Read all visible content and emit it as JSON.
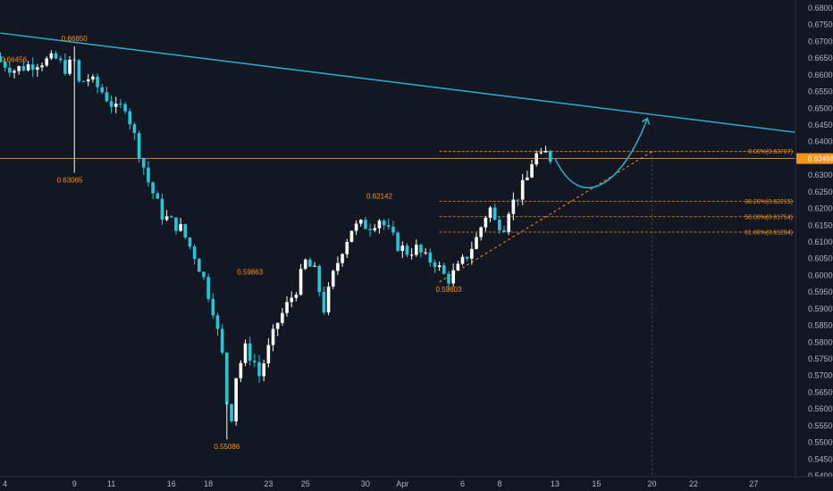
{
  "chart_data": {
    "type": "candlestick",
    "grid": false,
    "price_axis": {
      "position": "right",
      "min": 0.54,
      "max": 0.68,
      "tick_step": 0.005,
      "labels": [
        "0.68000",
        "0.67500",
        "0.67000",
        "0.66500",
        "0.66000",
        "0.65500",
        "0.65000",
        "0.64500",
        "0.64000",
        "0.63500",
        "0.63000",
        "0.62500",
        "0.62000",
        "0.61500",
        "0.61000",
        "0.60500",
        "0.60000",
        "0.59500",
        "0.59000",
        "0.58500",
        "0.58000",
        "0.57500",
        "0.57000",
        "0.56500",
        "0.56000",
        "0.55500",
        "0.55000",
        "0.54500",
        "0.54000"
      ],
      "current_price": 0.63496,
      "current_price_label": "0.63496"
    },
    "time_axis": {
      "labels": [
        {
          "label": "4",
          "index": 1
        },
        {
          "label": "9",
          "index": 16
        },
        {
          "label": "11",
          "index": 24
        },
        {
          "label": "16",
          "index": 37
        },
        {
          "label": "18",
          "index": 45
        },
        {
          "label": "23",
          "index": 58
        },
        {
          "label": "25",
          "index": 66
        },
        {
          "label": "30",
          "index": 79
        },
        {
          "label": "Apr",
          "index": 87
        },
        {
          "label": "6",
          "index": 100
        },
        {
          "label": "8",
          "index": 108
        },
        {
          "label": "13",
          "index": 120
        },
        {
          "label": "15",
          "index": 129
        },
        {
          "label": "20",
          "index": 141
        },
        {
          "label": "22",
          "index": 150
        },
        {
          "label": "27",
          "index": 163
        }
      ],
      "bar_count": 172
    },
    "candles_key_points": [
      {
        "i": 0,
        "v": 0.664
      },
      {
        "i": 3,
        "v": 0.6615
      },
      {
        "i": 8,
        "v": 0.6638
      },
      {
        "i": 12,
        "v": 0.6647
      },
      {
        "i": 14,
        "v": 0.662
      },
      {
        "i": 16,
        "v": 0.664
      },
      {
        "i": 17,
        "v": 0.6575
      },
      {
        "i": 19,
        "v": 0.659
      },
      {
        "i": 22,
        "v": 0.655
      },
      {
        "i": 25,
        "v": 0.6495
      },
      {
        "i": 27,
        "v": 0.651
      },
      {
        "i": 30,
        "v": 0.637
      },
      {
        "i": 32,
        "v": 0.628
      },
      {
        "i": 35,
        "v": 0.618
      },
      {
        "i": 39,
        "v": 0.614
      },
      {
        "i": 42,
        "v": 0.606
      },
      {
        "i": 44,
        "v": 0.599
      },
      {
        "i": 46,
        "v": 0.59
      },
      {
        "i": 48,
        "v": 0.576
      },
      {
        "i": 49,
        "v": 0.562
      },
      {
        "i": 50,
        "v": 0.558
      },
      {
        "i": 51,
        "v": 0.57
      },
      {
        "i": 53,
        "v": 0.578
      },
      {
        "i": 55,
        "v": 0.574
      },
      {
        "i": 56,
        "v": 0.57
      },
      {
        "i": 58,
        "v": 0.578
      },
      {
        "i": 60,
        "v": 0.586
      },
      {
        "i": 62,
        "v": 0.591
      },
      {
        "i": 64,
        "v": 0.596
      },
      {
        "i": 66,
        "v": 0.604
      },
      {
        "i": 68,
        "v": 0.601
      },
      {
        "i": 70,
        "v": 0.59
      },
      {
        "i": 72,
        "v": 0.6
      },
      {
        "i": 74,
        "v": 0.608
      },
      {
        "i": 76,
        "v": 0.614
      },
      {
        "i": 78,
        "v": 0.615
      },
      {
        "i": 80,
        "v": 0.615
      },
      {
        "i": 82,
        "v": 0.617
      },
      {
        "i": 84,
        "v": 0.613
      },
      {
        "i": 86,
        "v": 0.609
      },
      {
        "i": 88,
        "v": 0.607
      },
      {
        "i": 90,
        "v": 0.608
      },
      {
        "i": 92,
        "v": 0.605
      },
      {
        "i": 94,
        "v": 0.604
      },
      {
        "i": 96,
        "v": 0.6
      },
      {
        "i": 97,
        "v": 0.599
      },
      {
        "i": 99,
        "v": 0.602
      },
      {
        "i": 101,
        "v": 0.606
      },
      {
        "i": 103,
        "v": 0.611
      },
      {
        "i": 105,
        "v": 0.618
      },
      {
        "i": 106,
        "v": 0.62
      },
      {
        "i": 107,
        "v": 0.616
      },
      {
        "i": 109,
        "v": 0.615
      },
      {
        "i": 110,
        "v": 0.62
      },
      {
        "i": 112,
        "v": 0.624
      },
      {
        "i": 114,
        "v": 0.629
      },
      {
        "i": 115,
        "v": 0.634
      },
      {
        "i": 116,
        "v": 0.636
      },
      {
        "i": 117,
        "v": 0.635
      },
      {
        "i": 118,
        "v": 0.6365
      },
      {
        "i": 119,
        "v": 0.635
      }
    ],
    "annotations": [
      {
        "text": "0.66850",
        "i": 16,
        "v": 0.6685,
        "position": "above"
      },
      {
        "text": "0.66456",
        "i": 0,
        "v": 0.6646,
        "position": "left"
      },
      {
        "text": "0.63065",
        "i": 15,
        "v": 0.6307,
        "position": "below"
      },
      {
        "text": "0.59863",
        "i": 54,
        "v": 0.5986,
        "position": "above"
      },
      {
        "text": "0.55086",
        "i": 49,
        "v": 0.5509,
        "position": "below"
      },
      {
        "text": "0.62142",
        "i": 82,
        "v": 0.6214,
        "position": "above"
      },
      {
        "text": "0.59803",
        "i": 97,
        "v": 0.598,
        "position": "below"
      }
    ],
    "trendline": {
      "color": "#22b5d3",
      "from": {
        "i": 0,
        "v": 0.6725
      },
      "to": {
        "i": 172,
        "v": 0.6428
      }
    },
    "support_line": {
      "color": "#f7931a",
      "style": "dashed",
      "from": {
        "i": 95,
        "v": 0.598
      },
      "to": {
        "i": 141,
        "v": 0.637
      }
    },
    "horizontal_price_line": {
      "color": "#f7931a",
      "v": 0.63496
    },
    "fibonacci": {
      "color": "#f7931a",
      "from_i": 95,
      "to_i": 141,
      "levels": [
        {
          "label": "0.00%(0.63707)",
          "v": 0.63707
        },
        {
          "label": "38.20%(0.62215)",
          "v": 0.62215
        },
        {
          "label": "50.00%(0.61754)",
          "v": 0.61754
        },
        {
          "label": "61.80%(0.61294)",
          "v": 0.61294
        }
      ]
    },
    "projection_arrow": {
      "color": "#22b5d3",
      "points": [
        {
          "i": 120,
          "v": 0.635
        },
        {
          "i": 126,
          "v": 0.6235
        },
        {
          "i": 135,
          "v": 0.631
        },
        {
          "i": 140,
          "v": 0.647
        }
      ]
    },
    "bullish_color": "#ffffff",
    "bearish_color": "#26c6da"
  }
}
